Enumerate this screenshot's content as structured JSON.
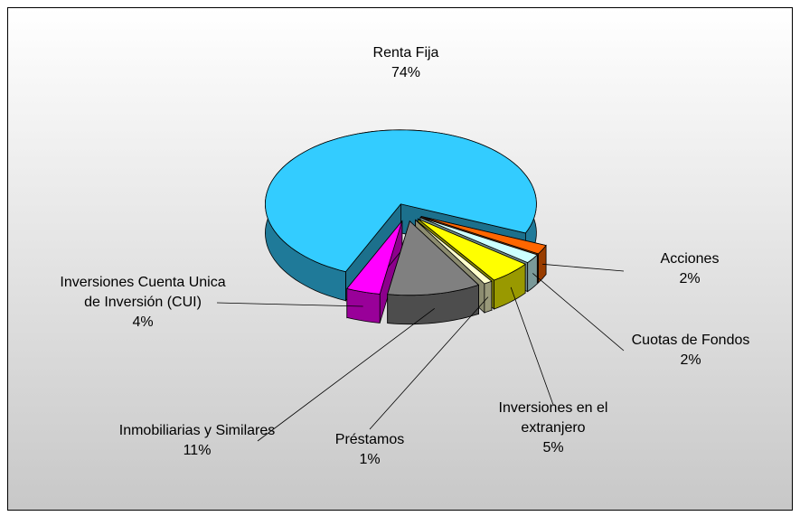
{
  "chart_data": {
    "type": "pie",
    "categories": [
      "Renta Fija",
      "Acciones",
      "Cuotas de Fondos",
      "Inversiones en el extranjero",
      "Préstamos",
      "Inmobiliarias y Similares",
      "Inversiones Cuenta Unica de Inversión (CUI)"
    ],
    "values": [
      74,
      2,
      2,
      5,
      1,
      11,
      4
    ],
    "value_labels": [
      "74%",
      "2%",
      "2%",
      "5%",
      "1%",
      "11%",
      "4%"
    ],
    "colors": [
      "#33ccff",
      "#ff6600",
      "#ccffff",
      "#ffff00",
      "#ffffcc",
      "#808080",
      "#ff00ff"
    ]
  }
}
